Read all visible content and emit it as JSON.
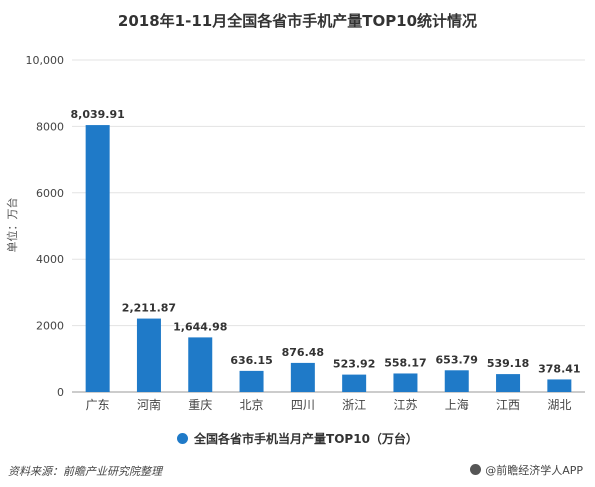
{
  "chart_data": {
    "type": "bar",
    "title": "2018年1-11月全国各省市手机产量TOP10统计情况",
    "ylabel": "单位：万台",
    "xlabel": "",
    "ylim": [
      0,
      10000
    ],
    "yticks": [
      "0",
      "2000",
      "4000",
      "6000",
      "8000",
      "10,000"
    ],
    "ytick_values": [
      0,
      2000,
      4000,
      6000,
      8000,
      10000
    ],
    "categories": [
      "广东",
      "河南",
      "重庆",
      "北京",
      "四川",
      "浙江",
      "江苏",
      "上海",
      "江西",
      "湖北"
    ],
    "series": [
      {
        "name": "全国各省市手机当月产量TOP10（万台）",
        "values": [
          8039.91,
          2211.87,
          1644.98,
          636.15,
          876.48,
          523.92,
          558.17,
          653.79,
          539.18,
          378.41
        ],
        "labels": [
          "8,039.91",
          "2,211.87",
          "1,644.98",
          "636.15",
          "876.48",
          "523.92",
          "558.17",
          "653.79",
          "539.18",
          "378.41"
        ]
      }
    ],
    "legend_position": "bottom",
    "grid": true,
    "bar_color": "#1f7ac8"
  },
  "footer": {
    "source": "资料来源：前瞻产业研究院整理",
    "brand": "@前瞻经济学人APP"
  }
}
